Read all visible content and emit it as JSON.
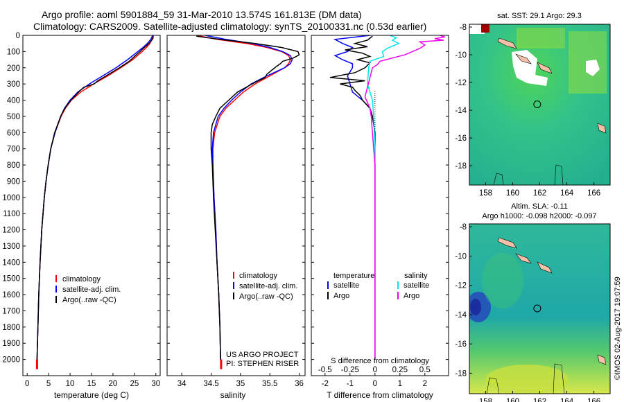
{
  "header": {
    "line1": "Argo profile: aoml 5901884_59 31-Mar-2010 13.574S 161.813E (DM data)",
    "line2": "Climatology: CARS2009. Satellite-adjusted climatology: synTS_20100331.nc (0.53d earlier)"
  },
  "colors": {
    "climatology": "#ff0000",
    "satellite": "#0000ff",
    "argo": "#000000",
    "sal_satellite": "#00e5ee",
    "sal_argo": "#ee00ee"
  },
  "chart_data": [
    {
      "type": "line",
      "id": "temperature",
      "xlabel": "temperature (deg C)",
      "ylabel": "",
      "xlim": [
        -1,
        31
      ],
      "ylim": [
        2100,
        0
      ],
      "xticks": [
        0,
        5,
        10,
        15,
        20,
        25,
        30
      ],
      "yticks": [
        0,
        100,
        200,
        300,
        400,
        500,
        600,
        700,
        800,
        900,
        1000,
        1100,
        1200,
        1300,
        1400,
        1500,
        1600,
        1700,
        1800,
        1900,
        2000
      ],
      "legend": [
        "climatology",
        "satellite-adj. clim.",
        "Argo(..raw -QC)"
      ],
      "series": [
        {
          "name": "climatology",
          "color": "#ff0000",
          "depth": [
            0,
            10,
            25,
            50,
            75,
            100,
            150,
            200,
            250,
            300,
            350,
            400,
            450,
            500,
            600,
            700,
            800,
            900,
            1000,
            1200,
            1400,
            1600,
            1800,
            2000,
            2050
          ],
          "values": [
            29.4,
            29.3,
            29.1,
            28.6,
            27.8,
            26.8,
            24.6,
            21.8,
            18.8,
            15.5,
            12.5,
            10.3,
            8.9,
            7.9,
            6.5,
            5.5,
            4.9,
            4.4,
            4.0,
            3.4,
            3.0,
            2.7,
            2.5,
            2.3,
            2.3
          ]
        },
        {
          "name": "satellite-adj. clim.",
          "color": "#0000ff",
          "depth": [
            0,
            10,
            25,
            50,
            75,
            100,
            150,
            200,
            250,
            300,
            350,
            400,
            450,
            500,
            600,
            700,
            800,
            900,
            1000,
            1200,
            1400,
            1600,
            1800,
            2000,
            2050
          ],
          "values": [
            29.2,
            29.1,
            28.8,
            28.0,
            27.0,
            25.8,
            23.4,
            20.7,
            17.6,
            14.5,
            11.8,
            10.0,
            8.7,
            7.8,
            6.5,
            5.5,
            4.9,
            4.4,
            4.0,
            3.4,
            3.0,
            2.7,
            2.5,
            2.3,
            2.3
          ]
        },
        {
          "name": "Argo(..raw -QC)",
          "color": "#000000",
          "depth": [
            5,
            20,
            40,
            60,
            80,
            100,
            130,
            160,
            200,
            240,
            280,
            300,
            320,
            350,
            400,
            450,
            500,
            600,
            700,
            800,
            900,
            1000,
            1200,
            1400,
            1600,
            1800,
            2000
          ],
          "values": [
            29.4,
            29.3,
            28.7,
            28.0,
            27.1,
            26.3,
            25.0,
            23.8,
            21.5,
            19.0,
            16.5,
            15.6,
            13.2,
            12.0,
            10.2,
            8.8,
            7.8,
            6.4,
            5.5,
            4.9,
            4.4,
            4.0,
            3.4,
            3.0,
            2.7,
            2.5,
            2.3
          ]
        }
      ]
    },
    {
      "type": "line",
      "id": "salinity",
      "xlabel": "salinity",
      "xlim": [
        33.75,
        36.1
      ],
      "ylim": [
        2100,
        0
      ],
      "xticks": [
        34,
        34.5,
        35,
        35.5,
        36
      ],
      "legend": [
        "climatology",
        "satellite-adj. clim.",
        "Argo(..raw -QC)"
      ],
      "annotations": [
        "US ARGO PROJECT",
        "PI: STEPHEN RISER"
      ],
      "series": [
        {
          "name": "climatology",
          "color": "#ff0000",
          "depth": [
            0,
            25,
            50,
            75,
            100,
            125,
            150,
            175,
            200,
            250,
            300,
            350,
            400,
            450,
            500,
            600,
            700,
            800,
            900,
            1000,
            1200,
            1400,
            1600,
            1800,
            2000,
            2050
          ],
          "values": [
            34.25,
            34.6,
            35.1,
            35.45,
            35.7,
            35.82,
            35.85,
            35.82,
            35.75,
            35.5,
            35.25,
            35.05,
            34.9,
            34.75,
            34.65,
            34.56,
            34.53,
            34.53,
            34.54,
            34.55,
            34.58,
            34.6,
            34.63,
            34.65,
            34.66,
            34.67
          ]
        },
        {
          "name": "satellite-adj. clim.",
          "color": "#0000ff",
          "depth": [
            0,
            25,
            50,
            75,
            100,
            125,
            150,
            175,
            200,
            250,
            300,
            350,
            400,
            450,
            500,
            600,
            700,
            800,
            900,
            1000,
            1200,
            1400,
            1600,
            1800,
            2000,
            2050
          ],
          "values": [
            34.4,
            34.75,
            35.2,
            35.5,
            35.72,
            35.85,
            35.88,
            35.85,
            35.75,
            35.45,
            35.18,
            35.0,
            34.85,
            34.72,
            34.62,
            34.54,
            34.52,
            34.53,
            34.54,
            34.55,
            34.58,
            34.6,
            34.63,
            34.65,
            34.66,
            34.67
          ]
        },
        {
          "name": "Argo(..raw -QC)",
          "color": "#000000",
          "depth": [
            5,
            25,
            50,
            75,
            100,
            120,
            140,
            160,
            175,
            190,
            210,
            240,
            260,
            290,
            320,
            350,
            400,
            450,
            500,
            550,
            600,
            700,
            800,
            900,
            1000,
            1200,
            1400,
            1600,
            1800,
            2000
          ],
          "values": [
            34.25,
            34.65,
            35.25,
            35.7,
            35.98,
            36.0,
            35.9,
            35.72,
            35.68,
            35.62,
            35.55,
            35.45,
            35.42,
            35.25,
            35.1,
            34.95,
            34.8,
            34.65,
            34.58,
            34.52,
            34.5,
            34.5,
            34.52,
            34.53,
            34.54,
            34.57,
            34.6,
            34.63,
            34.65,
            34.66
          ]
        }
      ]
    },
    {
      "type": "line",
      "id": "difference",
      "xlabel": "T difference from climatology",
      "xlabel_top": "S difference from climatology",
      "xlim": [
        -2.55,
        2.95
      ],
      "ylim": [
        2100,
        0
      ],
      "xticks": [
        -2,
        -1,
        0,
        1,
        2
      ],
      "xticks_salinity": [
        -0.5,
        -0.25,
        0,
        0.25,
        0.5
      ],
      "legend_headers": [
        "temperature",
        "salinity"
      ],
      "legend_temperature": [
        "satellite",
        "Argo"
      ],
      "legend_salinity": [
        "satellite",
        "Argo"
      ],
      "series": [
        {
          "name": "T satellite",
          "color": "#0000ff",
          "depth": [
            0,
            25,
            50,
            75,
            100,
            125,
            150,
            175,
            200,
            250,
            300,
            350,
            400,
            450,
            500,
            600,
            700,
            800,
            900,
            1000,
            1200,
            1400,
            1600,
            1800,
            2000
          ],
          "values": [
            -0.2,
            -1.6,
            -1.3,
            -0.9,
            -1.1,
            -1.6,
            -1.3,
            -0.9,
            -0.9,
            -1.1,
            -1.0,
            -0.9,
            -0.5,
            -0.2,
            -0.1,
            0,
            0,
            0,
            0,
            0,
            0,
            0,
            0,
            0,
            0
          ]
        },
        {
          "name": "T Argo",
          "color": "#000000",
          "depth": [
            5,
            30,
            50,
            70,
            90,
            110,
            130,
            150,
            170,
            200,
            230,
            260,
            280,
            300,
            320,
            340,
            370,
            400,
            450,
            500,
            550,
            600,
            700,
            800,
            1000,
            1200,
            1600,
            2000
          ],
          "values": [
            -0.1,
            -0.3,
            -0.8,
            -0.3,
            -1.2,
            -0.5,
            -0.2,
            -0.7,
            -0.2,
            -0.4,
            -0.8,
            -1.8,
            -0.4,
            -1.4,
            -0.9,
            -0.8,
            -0.6,
            -0.5,
            -0.2,
            -0.1,
            -0.05,
            0,
            0,
            0,
            0,
            0,
            0,
            0
          ]
        },
        {
          "name": "S satellite",
          "color": "#00e5ee",
          "depth": [
            0,
            15,
            30,
            50,
            80,
            100,
            130,
            160,
            200,
            300,
            400,
            500,
            700,
            900,
            1200,
            1600,
            2000
          ],
          "values": [
            0.6,
            0.85,
            0.7,
            0.95,
            0.5,
            0.3,
            0.35,
            -0.2,
            -0.25,
            -0.3,
            -0.1,
            -0.05,
            0,
            0,
            0,
            0,
            0
          ],
          "units": "T-axis scale (S x4)"
        },
        {
          "name": "S Argo",
          "color": "#ee00ee",
          "depth": [
            0,
            10,
            20,
            30,
            40,
            60,
            80,
            100,
            120,
            140,
            160,
            180,
            200,
            260,
            320,
            380,
            450,
            500,
            600,
            700,
            800,
            1000,
            1400,
            2000
          ],
          "values": [
            2.6,
            2.8,
            2.4,
            2.75,
            1.8,
            2.0,
            1.8,
            1.5,
            1.2,
            0.7,
            0.2,
            0.1,
            -0.1,
            -0.2,
            -0.3,
            -0.4,
            -0.2,
            -0.15,
            -0.1,
            -0.05,
            0,
            0,
            0,
            0
          ],
          "units": "T-axis scale (S x4)"
        }
      ]
    },
    {
      "type": "heatmap",
      "id": "sst_map",
      "title": "sat. SST: 29.1  Argo: 29.3",
      "xticks": [
        158,
        160,
        162,
        164,
        166
      ],
      "yticks": [
        -8,
        -10,
        -12,
        -14,
        -16,
        -18
      ],
      "xlim": [
        156.8,
        167.2
      ],
      "ylim": [
        -19.4,
        -7.8
      ],
      "marker": {
        "lon": 161.813,
        "lat": -13.574
      }
    },
    {
      "type": "heatmap",
      "id": "sla_map",
      "title": "Altim. SLA: -0.11",
      "subtitle": "Argo h1000: -0.098 h2000: -0.097",
      "xticks": [
        158,
        160,
        162,
        164,
        166
      ],
      "yticks": [
        -8,
        -10,
        -12,
        -14,
        -16,
        -18
      ],
      "xlim": [
        156.8,
        167.2
      ],
      "ylim": [
        -19.4,
        -7.8
      ],
      "marker": {
        "lon": 161.813,
        "lat": -13.574
      }
    }
  ],
  "footer": {
    "timestamp": "©IMOS 02-Aug-2017 19:07:59"
  }
}
